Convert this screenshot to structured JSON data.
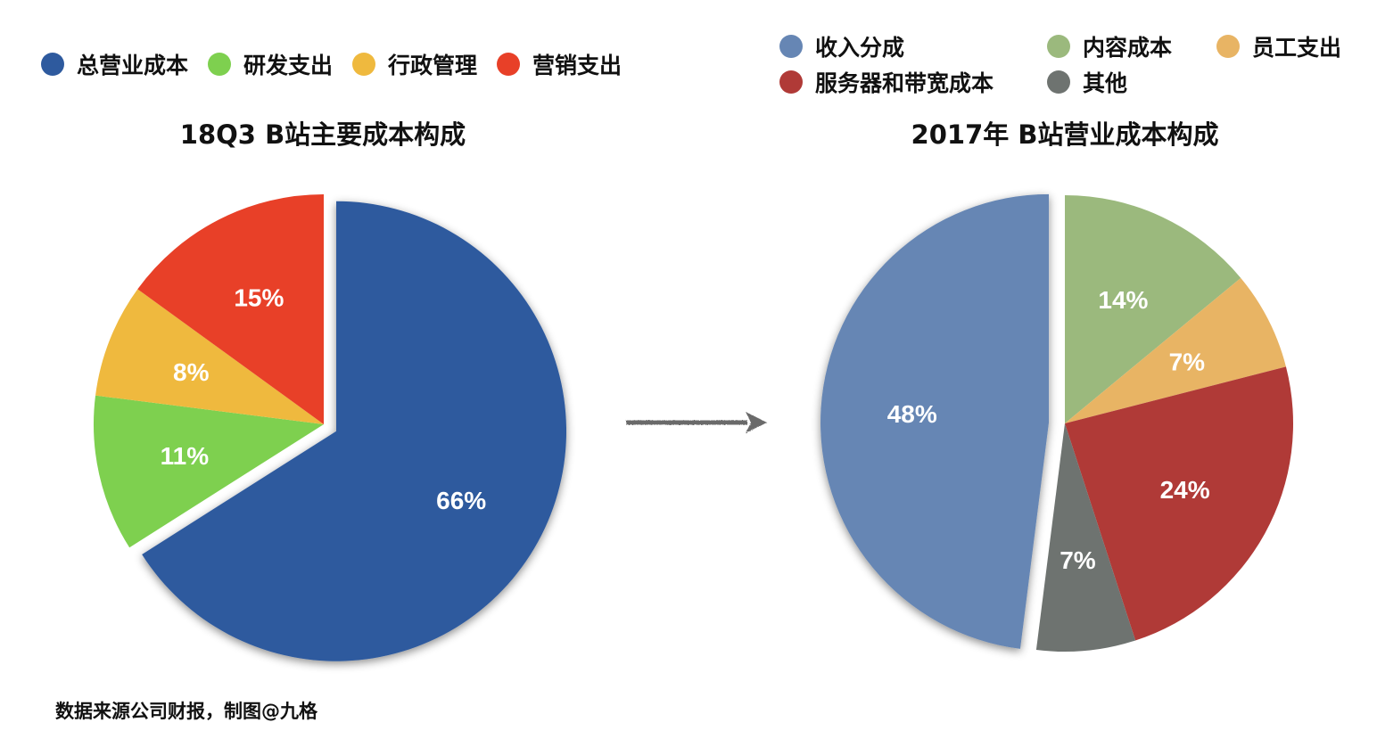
{
  "chart_data": [
    {
      "type": "pie",
      "title": "18Q3 B站主要成本构成",
      "legend_position": "top",
      "slices": [
        {
          "name": "总营业成本",
          "value": 66,
          "label": "66%",
          "color": "#2e5a9e"
        },
        {
          "name": "研发支出",
          "value": 11,
          "label": "11%",
          "color": "#7ed04f"
        },
        {
          "name": "行政管理",
          "value": 8,
          "label": "8%",
          "color": "#efb93e"
        },
        {
          "name": "营销支出",
          "value": 15,
          "label": "15%",
          "color": "#e84028"
        }
      ]
    },
    {
      "type": "pie",
      "title": "2017年 B站营业成本构成",
      "legend_position": "top",
      "slices": [
        {
          "name": "内容成本",
          "value": 14,
          "label": "14%",
          "color": "#9bb97d"
        },
        {
          "name": "员工支出",
          "value": 7,
          "label": "7%",
          "color": "#e8b464"
        },
        {
          "name": "服务器和带宽成本",
          "value": 24,
          "label": "24%",
          "color": "#b03a37"
        },
        {
          "name": "其他",
          "value": 7,
          "label": "7%",
          "color": "#6e7370"
        },
        {
          "name": "收入分成",
          "value": 48,
          "label": "48%",
          "color": "#6686b4"
        }
      ]
    }
  ],
  "footer": "数据来源公司财报，制图@九格",
  "arrow_icon": "right-arrow-icon"
}
